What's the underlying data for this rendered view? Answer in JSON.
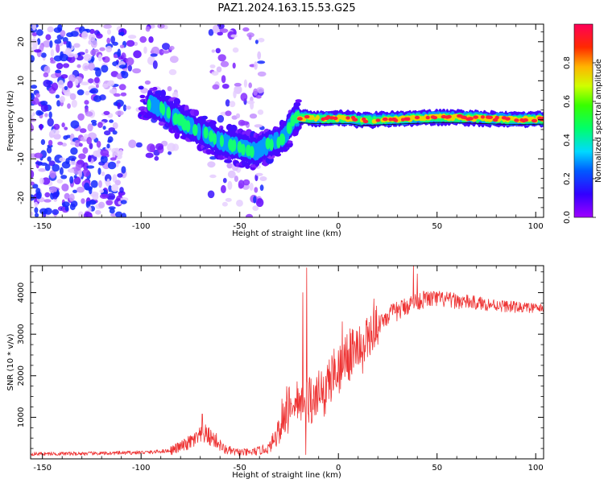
{
  "title": "PAZ1.2024.163.15.53.G25",
  "colors": {
    "snr_line": "#ee3333",
    "track": "#111111",
    "spectrogram_scale": [
      "#ffffff",
      "#d9b8ff",
      "#7a1cff",
      "#3a20ff",
      "#00b7ff",
      "#19ff5a",
      "#b6ff00",
      "#ffd500",
      "#ff3a3a",
      "#ff0a6e"
    ]
  },
  "chart_data": [
    {
      "type": "heatmap",
      "title": "PAZ1.2024.163.15.53.G25",
      "xlabel": "Height of straight line (km)",
      "ylabel": "Frequency (Hz)",
      "xlim": [
        -156,
        104
      ],
      "ylim": [
        -25,
        24.5
      ],
      "x_ticks": [
        "-150",
        "-100",
        "-50",
        "0",
        "50",
        "100"
      ],
      "x_tick_values": [
        -150,
        -100,
        -50,
        0,
        50,
        100
      ],
      "y_ticks": [
        "-20",
        "-10",
        "0",
        "10",
        "20"
      ],
      "y_tick_values": [
        -20,
        -10,
        0,
        10,
        20
      ],
      "colorbar": {
        "label": "Normalized spectral amplitude",
        "range": [
          0,
          1
        ],
        "ticks": [
          "0.0",
          "0.2",
          "0.4",
          "0.6",
          "0.8"
        ],
        "tick_values": [
          0.0,
          0.2,
          0.4,
          0.6,
          0.8
        ],
        "colormap": "gist_rainbow_r"
      },
      "ridge": {
        "x": [
          -96,
          -90,
          -84,
          -78,
          -72,
          -66,
          -60,
          -54,
          -48,
          -42,
          -38,
          -34,
          -30,
          -27,
          -24,
          -22,
          -18,
          -10,
          0,
          6,
          12,
          20,
          30,
          40,
          50,
          60,
          70,
          80,
          90,
          104
        ],
        "y": [
          4,
          3,
          1,
          -1,
          -2.5,
          -4,
          -5.5,
          -6.5,
          -7.5,
          -8,
          -7,
          -6,
          -5.5,
          -4,
          -1,
          0.5,
          0.5,
          0.3,
          0.4,
          0.3,
          -0.2,
          0,
          0.2,
          0.4,
          0.6,
          0.6,
          0.4,
          0.2,
          0.1,
          0.2
        ]
      },
      "noise_regions": [
        {
          "x": [
            -156,
            -108
          ],
          "y": [
            -25,
            24.5
          ],
          "level": 0.35
        },
        {
          "x": [
            -108,
            -82
          ],
          "y": [
            -10,
            24.5
          ],
          "level": 0.12
        },
        {
          "x": [
            -65,
            -38
          ],
          "y": [
            -25,
            24.5
          ],
          "level": 0.15
        }
      ],
      "grid": false
    },
    {
      "type": "line",
      "xlabel": "Height of straight line (km)",
      "ylabel": "SNR (10 * v/v)",
      "xlim": [
        -156,
        104
      ],
      "ylim": [
        0,
        4650
      ],
      "x_ticks": [
        "-150",
        "-100",
        "-50",
        "0",
        "50",
        "100"
      ],
      "x_tick_values": [
        -150,
        -100,
        -50,
        0,
        50,
        100
      ],
      "y_ticks": [
        "1000",
        "2000",
        "3000",
        "4000"
      ],
      "y_tick_values": [
        1000,
        2000,
        3000,
        4000
      ],
      "series": [
        {
          "trend_x": [
            -156,
            -120,
            -95,
            -85,
            -78,
            -72,
            -68,
            -62,
            -58,
            -52,
            -45,
            -40,
            -35,
            -32,
            -28,
            -24,
            -20,
            -16,
            -12,
            -8,
            -4,
            0,
            5,
            10,
            15,
            20,
            25,
            30,
            35,
            40,
            45,
            50,
            60,
            70,
            80,
            90,
            104
          ],
          "trend_y": [
            120,
            130,
            160,
            200,
            330,
            480,
            600,
            440,
            230,
            160,
            150,
            200,
            260,
            550,
            1100,
            1400,
            1500,
            1600,
            1500,
            1700,
            2100,
            2300,
            2600,
            2700,
            2950,
            3250,
            3450,
            3550,
            3700,
            3800,
            3850,
            3850,
            3800,
            3750,
            3700,
            3650,
            3620
          ],
          "spikes": [
            {
              "x": -16,
              "y": 4600
            },
            {
              "x": -18,
              "y": 4000
            },
            {
              "x": -16.6,
              "y": 100
            },
            {
              "x": 38,
              "y": 4680
            },
            {
              "x": 40,
              "y": 4450
            },
            {
              "x": -69,
              "y": 1080
            },
            {
              "x": 2,
              "y": 3300
            },
            {
              "x": 18,
              "y": 3850
            }
          ]
        }
      ],
      "grid": false
    }
  ]
}
